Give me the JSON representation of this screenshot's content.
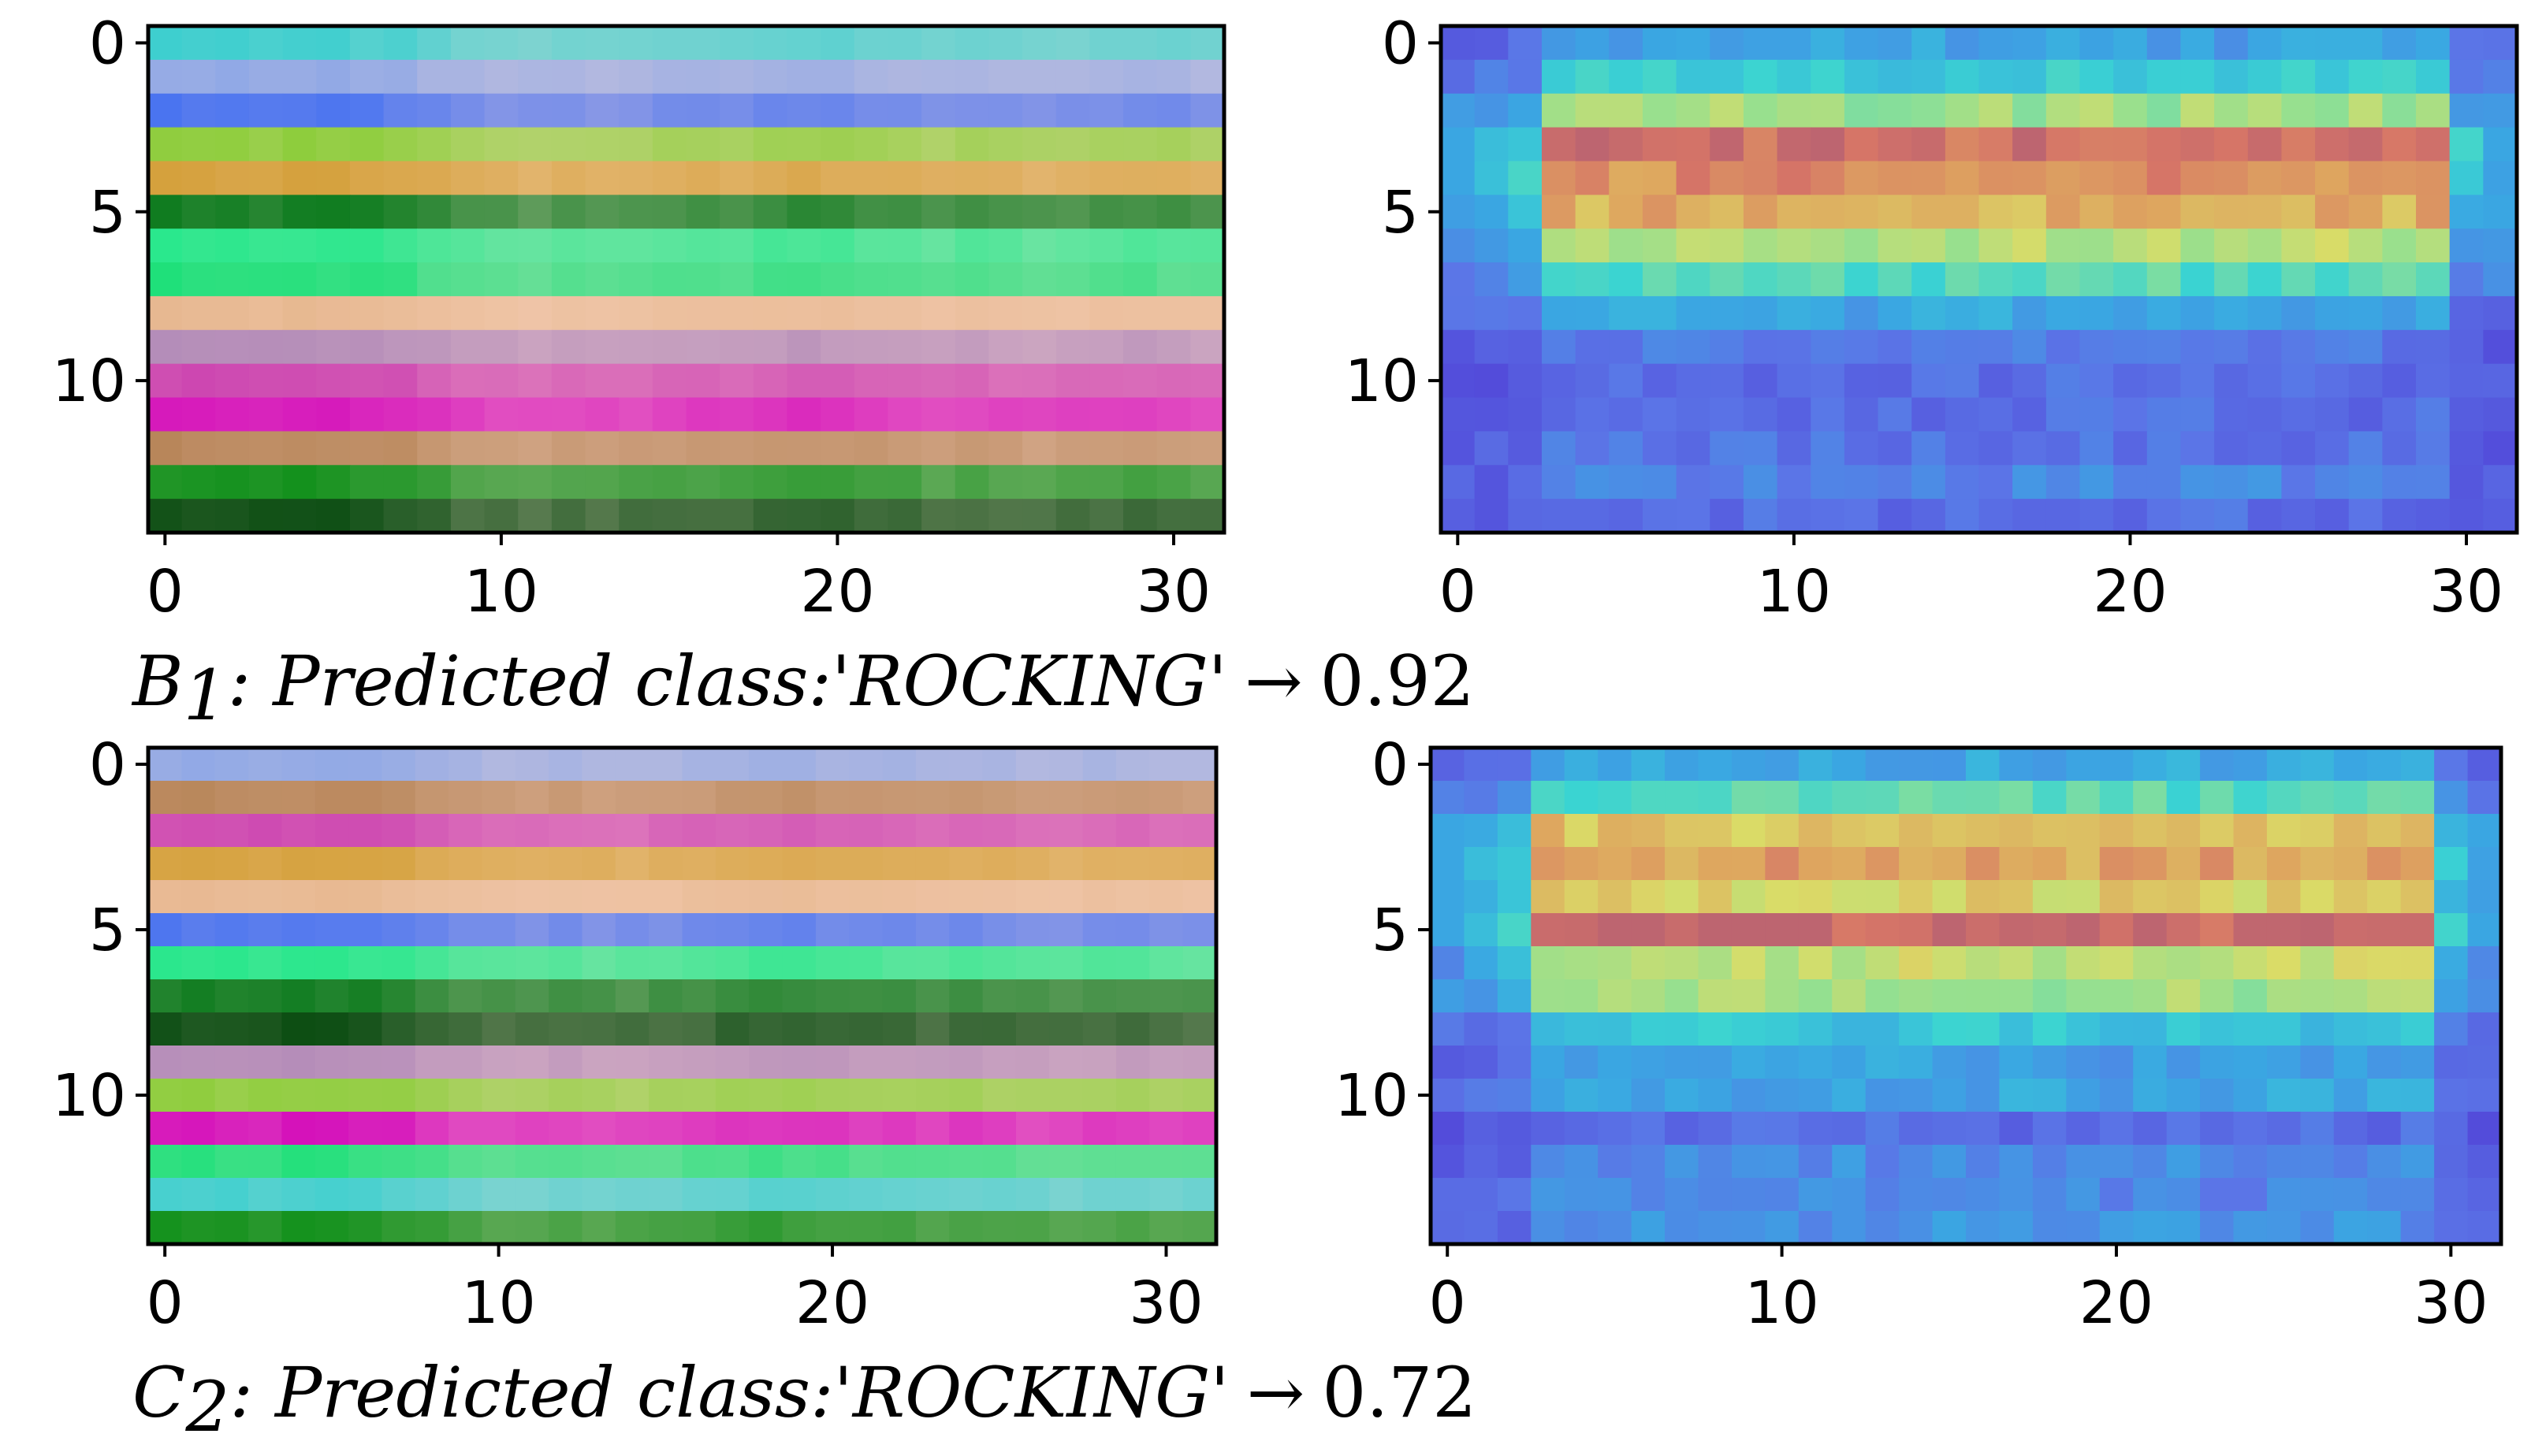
{
  "figure": {
    "captions": [
      {
        "var": "B",
        "sub": "1",
        "text": ": Predicted class:'ROCKING'",
        "arrow": "→",
        "score": "0.92"
      },
      {
        "var": "C",
        "sub": "2",
        "text": ": Predicted class:'ROCKING'",
        "arrow": "→",
        "score": "0.72"
      }
    ]
  },
  "chart_data": [
    {
      "type": "heatmap",
      "title": "",
      "description": "Sample B1 input: horizontal colour-coded channel stripes",
      "xlim": [
        -0.5,
        31.5
      ],
      "ylim": [
        14.5,
        -0.5
      ],
      "xticks": [
        0,
        10,
        20,
        30
      ],
      "yticks": [
        0,
        5,
        10
      ],
      "rows": 15,
      "cols": 32,
      "style": "stripes",
      "row_colors": [
        "#3ecfcf",
        "#8fa8e6",
        "#4a74f0",
        "#8ccd3a",
        "#d4a03a",
        "#0a7a1c",
        "#22e88a",
        "#1fe07a",
        "#e7b890",
        "#b28ab8",
        "#cc44b0",
        "#d40fba",
        "#b8865a",
        "#10901a",
        "#064a0e"
      ],
      "col_tint": [
        0.05,
        0.1,
        0.1,
        0.15,
        0.1,
        0.1,
        0.15,
        0.2,
        0.35,
        0.45,
        0.5,
        0.55,
        0.5,
        0.55,
        0.5,
        0.45,
        0.4,
        0.4,
        0.35,
        0.3,
        0.35,
        0.4,
        0.45,
        0.5,
        0.45,
        0.5,
        0.55,
        0.5,
        0.45,
        0.4,
        0.45,
        0.5
      ]
    },
    {
      "type": "heatmap",
      "title": "",
      "description": "Sample B1 activation heat map overlay",
      "xlim": [
        -0.5,
        31.5
      ],
      "ylim": [
        14.5,
        -0.5
      ],
      "xticks": [
        0,
        10,
        20,
        30
      ],
      "yticks": [
        0,
        5,
        10
      ],
      "rows": 15,
      "cols": 32,
      "style": "heat",
      "hot_rows": [
        {
          "row": 0,
          "level": 0.28
        },
        {
          "row": 1,
          "level": 0.42
        },
        {
          "row": 2,
          "level": 0.62
        },
        {
          "row": 3,
          "level": 0.95
        },
        {
          "row": 4,
          "level": 0.88
        },
        {
          "row": 5,
          "level": 0.82
        },
        {
          "row": 6,
          "level": 0.66
        },
        {
          "row": 7,
          "level": 0.5
        },
        {
          "row": 8,
          "level": 0.3
        },
        {
          "row": 9,
          "level": 0.16
        },
        {
          "row": 10,
          "level": 0.12
        },
        {
          "row": 11,
          "level": 0.12
        },
        {
          "row": 12,
          "level": 0.14
        },
        {
          "row": 13,
          "level": 0.2
        },
        {
          "row": 14,
          "level": 0.12
        }
      ],
      "hot_col_range": [
        3,
        29
      ]
    },
    {
      "type": "heatmap",
      "title": "",
      "description": "Sample C2 input: horizontal colour-coded channel stripes",
      "xlim": [
        -0.5,
        31.5
      ],
      "ylim": [
        14.5,
        -0.5
      ],
      "xticks": [
        0,
        10,
        20,
        30
      ],
      "yticks": [
        0,
        5,
        10
      ],
      "rows": 15,
      "cols": 32,
      "style": "stripes",
      "row_colors": [
        "#8fa8e6",
        "#b8865a",
        "#cc44b0",
        "#d4a03a",
        "#e7b890",
        "#4a74f0",
        "#22e88a",
        "#0a7a1c",
        "#064a0e",
        "#b28ab8",
        "#8ccd3a",
        "#d40fba",
        "#1fe07a",
        "#3ecfcf",
        "#10901a"
      ],
      "col_tint": [
        0.1,
        0.1,
        0.15,
        0.15,
        0.1,
        0.1,
        0.15,
        0.2,
        0.35,
        0.45,
        0.5,
        0.5,
        0.45,
        0.5,
        0.5,
        0.45,
        0.4,
        0.35,
        0.3,
        0.3,
        0.35,
        0.4,
        0.4,
        0.45,
        0.4,
        0.45,
        0.5,
        0.5,
        0.45,
        0.45,
        0.5,
        0.5
      ]
    },
    {
      "type": "heatmap",
      "title": "",
      "description": "Sample C2 activation heat map overlay",
      "xlim": [
        -0.5,
        31.5
      ],
      "ylim": [
        14.5,
        -0.5
      ],
      "xticks": [
        0,
        10,
        20,
        30
      ],
      "yticks": [
        0,
        5,
        10
      ],
      "rows": 15,
      "cols": 32,
      "style": "heat",
      "hot_rows": [
        {
          "row": 0,
          "level": 0.3
        },
        {
          "row": 1,
          "level": 0.5
        },
        {
          "row": 2,
          "level": 0.78
        },
        {
          "row": 3,
          "level": 0.84
        },
        {
          "row": 4,
          "level": 0.74
        },
        {
          "row": 5,
          "level": 0.98
        },
        {
          "row": 6,
          "level": 0.68
        },
        {
          "row": 7,
          "level": 0.62
        },
        {
          "row": 8,
          "level": 0.4
        },
        {
          "row": 9,
          "level": 0.28
        },
        {
          "row": 10,
          "level": 0.3
        },
        {
          "row": 11,
          "level": 0.12
        },
        {
          "row": 12,
          "level": 0.22
        },
        {
          "row": 13,
          "level": 0.2
        },
        {
          "row": 14,
          "level": 0.24
        }
      ],
      "hot_col_range": [
        3,
        29
      ]
    }
  ]
}
